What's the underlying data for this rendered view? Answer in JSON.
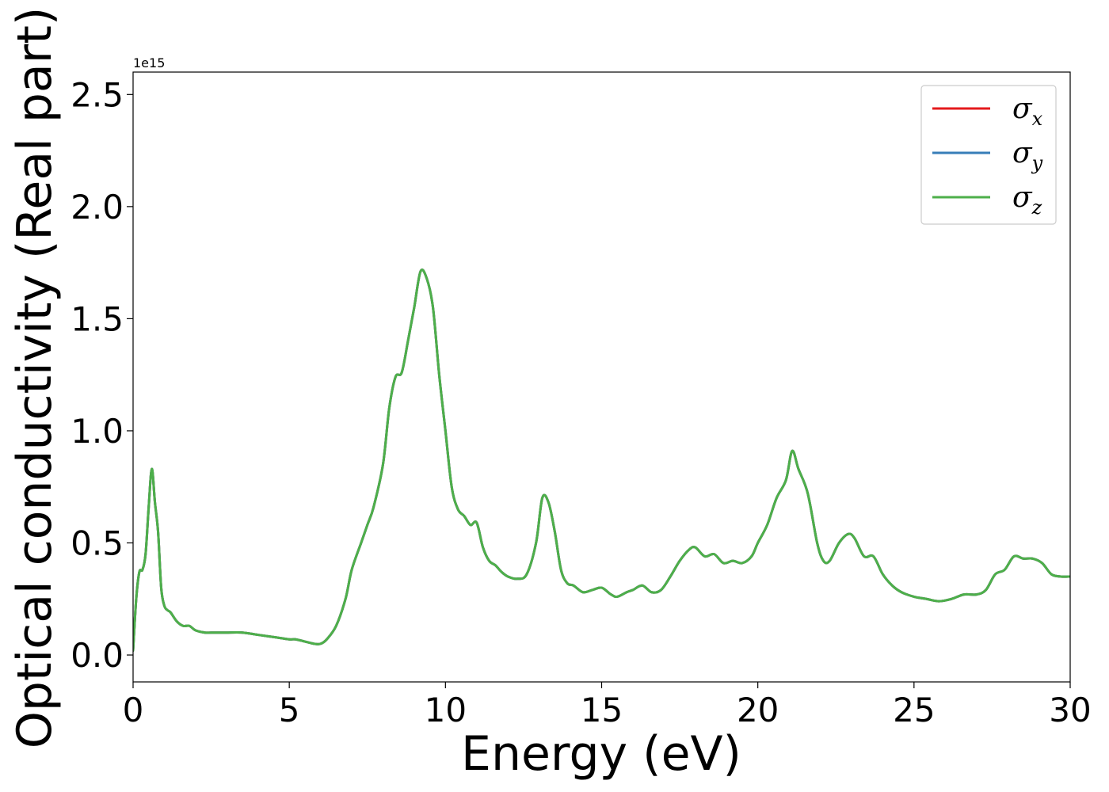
{
  "chart_data": {
    "type": "line",
    "xlabel": "Energy (eV)",
    "ylabel": "Optical conductivity (Real part)",
    "y_offset_label": "1e15",
    "xlim": [
      0,
      30
    ],
    "ylim": [
      -0.12,
      2.6
    ],
    "xticks": [
      0,
      5,
      10,
      15,
      20,
      25,
      30
    ],
    "xtick_labels": [
      "0",
      "5",
      "10",
      "15",
      "20",
      "25",
      "30"
    ],
    "yticks": [
      0.0,
      0.5,
      1.0,
      1.5,
      2.0,
      2.5
    ],
    "ytick_labels": [
      "0.0",
      "0.5",
      "1.0",
      "1.5",
      "2.0",
      "2.5"
    ],
    "grid": false,
    "legend_position": "top-right",
    "x": [
      0,
      0.1,
      0.2,
      0.3,
      0.4,
      0.5,
      0.6,
      0.7,
      0.8,
      0.9,
      1.0,
      1.1,
      1.2,
      1.4,
      1.6,
      1.8,
      2.0,
      2.3,
      2.5,
      2.8,
      3.0,
      3.5,
      4.0,
      4.5,
      5.0,
      5.2,
      5.5,
      5.8,
      6.0,
      6.2,
      6.5,
      6.8,
      7.0,
      7.3,
      7.5,
      7.7,
      8.0,
      8.2,
      8.4,
      8.6,
      8.8,
      9.0,
      9.2,
      9.4,
      9.6,
      9.8,
      10.0,
      10.2,
      10.4,
      10.6,
      10.8,
      11.0,
      11.2,
      11.4,
      11.6,
      11.8,
      12.0,
      12.3,
      12.6,
      12.9,
      13.1,
      13.3,
      13.5,
      13.7,
      13.9,
      14.1,
      14.4,
      14.7,
      15.0,
      15.3,
      15.5,
      15.8,
      16.0,
      16.3,
      16.6,
      16.9,
      17.2,
      17.5,
      17.8,
      18.0,
      18.3,
      18.6,
      18.9,
      19.2,
      19.5,
      19.8,
      20.0,
      20.3,
      20.6,
      20.9,
      21.1,
      21.3,
      21.6,
      21.9,
      22.1,
      22.3,
      22.6,
      22.9,
      23.1,
      23.4,
      23.7,
      24.0,
      24.3,
      24.6,
      25.0,
      25.4,
      25.8,
      26.2,
      26.6,
      27.0,
      27.3,
      27.6,
      27.9,
      28.2,
      28.5,
      28.8,
      29.1,
      29.4,
      29.7,
      30.0
    ],
    "series": [
      {
        "name": "σx",
        "name_base": "σ",
        "name_sub": "x",
        "color": "#e41a1c",
        "values": [
          0.02,
          0.25,
          0.37,
          0.38,
          0.45,
          0.66,
          0.83,
          0.68,
          0.55,
          0.3,
          0.22,
          0.2,
          0.19,
          0.15,
          0.13,
          0.13,
          0.11,
          0.1,
          0.1,
          0.1,
          0.1,
          0.1,
          0.09,
          0.08,
          0.07,
          0.07,
          0.06,
          0.05,
          0.05,
          0.07,
          0.13,
          0.25,
          0.38,
          0.5,
          0.58,
          0.66,
          0.85,
          1.1,
          1.24,
          1.26,
          1.4,
          1.55,
          1.71,
          1.68,
          1.55,
          1.25,
          1.0,
          0.75,
          0.65,
          0.62,
          0.58,
          0.59,
          0.48,
          0.42,
          0.4,
          0.37,
          0.35,
          0.34,
          0.36,
          0.5,
          0.7,
          0.68,
          0.55,
          0.38,
          0.32,
          0.31,
          0.28,
          0.29,
          0.3,
          0.27,
          0.26,
          0.28,
          0.29,
          0.31,
          0.28,
          0.29,
          0.35,
          0.42,
          0.47,
          0.48,
          0.44,
          0.45,
          0.41,
          0.42,
          0.41,
          0.44,
          0.5,
          0.58,
          0.7,
          0.78,
          0.91,
          0.83,
          0.72,
          0.5,
          0.42,
          0.42,
          0.5,
          0.54,
          0.52,
          0.44,
          0.44,
          0.36,
          0.31,
          0.28,
          0.26,
          0.25,
          0.24,
          0.25,
          0.27,
          0.27,
          0.29,
          0.36,
          0.38,
          0.44,
          0.43,
          0.43,
          0.41,
          0.36,
          0.35,
          0.35
        ]
      },
      {
        "name": "σy",
        "name_base": "σ",
        "name_sub": "y",
        "color": "#377eb8",
        "values": [
          0.02,
          0.25,
          0.37,
          0.38,
          0.45,
          0.66,
          0.83,
          0.68,
          0.55,
          0.3,
          0.22,
          0.2,
          0.19,
          0.15,
          0.13,
          0.13,
          0.11,
          0.1,
          0.1,
          0.1,
          0.1,
          0.1,
          0.09,
          0.08,
          0.07,
          0.07,
          0.06,
          0.05,
          0.05,
          0.07,
          0.13,
          0.25,
          0.38,
          0.5,
          0.58,
          0.66,
          0.85,
          1.1,
          1.24,
          1.26,
          1.4,
          1.55,
          1.71,
          1.68,
          1.55,
          1.25,
          1.0,
          0.75,
          0.65,
          0.62,
          0.58,
          0.59,
          0.48,
          0.42,
          0.4,
          0.37,
          0.35,
          0.34,
          0.36,
          0.5,
          0.7,
          0.68,
          0.55,
          0.38,
          0.32,
          0.31,
          0.28,
          0.29,
          0.3,
          0.27,
          0.26,
          0.28,
          0.29,
          0.31,
          0.28,
          0.29,
          0.35,
          0.42,
          0.47,
          0.48,
          0.44,
          0.45,
          0.41,
          0.42,
          0.41,
          0.44,
          0.5,
          0.58,
          0.7,
          0.78,
          0.91,
          0.83,
          0.72,
          0.5,
          0.42,
          0.42,
          0.5,
          0.54,
          0.52,
          0.44,
          0.44,
          0.36,
          0.31,
          0.28,
          0.26,
          0.25,
          0.24,
          0.25,
          0.27,
          0.27,
          0.29,
          0.36,
          0.38,
          0.44,
          0.43,
          0.43,
          0.41,
          0.36,
          0.35,
          0.35
        ]
      },
      {
        "name": "σz",
        "name_base": "σ",
        "name_sub": "z",
        "color": "#4daf4a",
        "values": [
          0.02,
          0.25,
          0.37,
          0.38,
          0.45,
          0.66,
          0.83,
          0.68,
          0.55,
          0.3,
          0.22,
          0.2,
          0.19,
          0.15,
          0.13,
          0.13,
          0.11,
          0.1,
          0.1,
          0.1,
          0.1,
          0.1,
          0.09,
          0.08,
          0.07,
          0.07,
          0.06,
          0.05,
          0.05,
          0.07,
          0.13,
          0.25,
          0.38,
          0.5,
          0.58,
          0.66,
          0.85,
          1.1,
          1.24,
          1.26,
          1.4,
          1.55,
          1.71,
          1.68,
          1.55,
          1.25,
          1.0,
          0.75,
          0.65,
          0.62,
          0.58,
          0.59,
          0.48,
          0.42,
          0.4,
          0.37,
          0.35,
          0.34,
          0.36,
          0.5,
          0.7,
          0.68,
          0.55,
          0.38,
          0.32,
          0.31,
          0.28,
          0.29,
          0.3,
          0.27,
          0.26,
          0.28,
          0.29,
          0.31,
          0.28,
          0.29,
          0.35,
          0.42,
          0.47,
          0.48,
          0.44,
          0.45,
          0.41,
          0.42,
          0.41,
          0.44,
          0.5,
          0.58,
          0.7,
          0.78,
          0.91,
          0.83,
          0.72,
          0.5,
          0.42,
          0.42,
          0.5,
          0.54,
          0.52,
          0.44,
          0.44,
          0.36,
          0.31,
          0.28,
          0.26,
          0.25,
          0.24,
          0.25,
          0.27,
          0.27,
          0.29,
          0.36,
          0.38,
          0.44,
          0.43,
          0.43,
          0.41,
          0.36,
          0.35,
          0.35
        ]
      }
    ]
  }
}
